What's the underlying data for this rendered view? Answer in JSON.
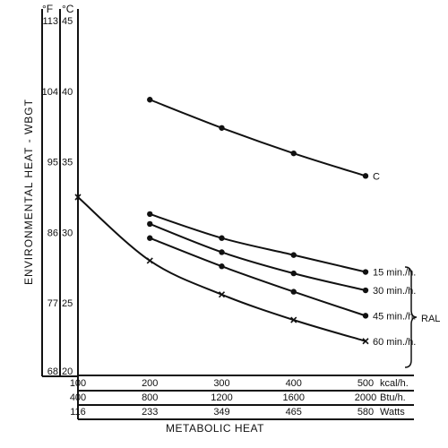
{
  "chart_data": {
    "type": "line",
    "ylabel": "ENVIRONMENTAL HEAT - WBGT",
    "xlabel": "METABOLIC HEAT",
    "y_unit_f": "°F",
    "y_unit_c": "°C",
    "y_ticks": [
      {
        "c": "45",
        "f": "113"
      },
      {
        "c": "40",
        "f": "104"
      },
      {
        "c": "35",
        "f": "95"
      },
      {
        "c": "30",
        "f": "86"
      },
      {
        "c": "25",
        "f": "77"
      },
      {
        "c": "20",
        "f": "68"
      }
    ],
    "ylim_c": [
      20,
      45
    ],
    "xlim_kcal": [
      100,
      500
    ],
    "x_rows": [
      {
        "unit": "kcal/h.",
        "ticks": [
          "100",
          "200",
          "300",
          "400",
          "500"
        ]
      },
      {
        "unit": "Btu/h.",
        "ticks": [
          "400",
          "800",
          "1200",
          "1600",
          "2000"
        ]
      },
      {
        "unit": "Watts",
        "ticks": [
          "116",
          "233",
          "349",
          "465",
          "580"
        ]
      }
    ],
    "x_tick_values": [
      100,
      200,
      300,
      400,
      500
    ],
    "series": [
      {
        "name": "C",
        "marker": "dot",
        "x": [
          200,
          300,
          400,
          500
        ],
        "y": [
          39.4,
          37.4,
          35.6,
          34.0
        ]
      },
      {
        "name": "15 min./h.",
        "marker": "dot",
        "x": [
          200,
          300,
          400,
          500
        ],
        "y": [
          31.3,
          29.6,
          28.4,
          27.2
        ]
      },
      {
        "name": "30 min./h.",
        "marker": "dot",
        "x": [
          200,
          300,
          400,
          500
        ],
        "y": [
          30.6,
          28.6,
          27.1,
          25.9
        ]
      },
      {
        "name": "45 min./h.",
        "marker": "dot",
        "x": [
          200,
          300,
          400,
          500
        ],
        "y": [
          29.6,
          27.6,
          25.8,
          24.1
        ]
      },
      {
        "name": "60 min./h.",
        "marker": "cross",
        "x": [
          100,
          200,
          300,
          400,
          500
        ],
        "y": [
          32.5,
          28.0,
          25.6,
          23.8,
          22.3
        ]
      }
    ],
    "bracket_label": "RAL"
  }
}
